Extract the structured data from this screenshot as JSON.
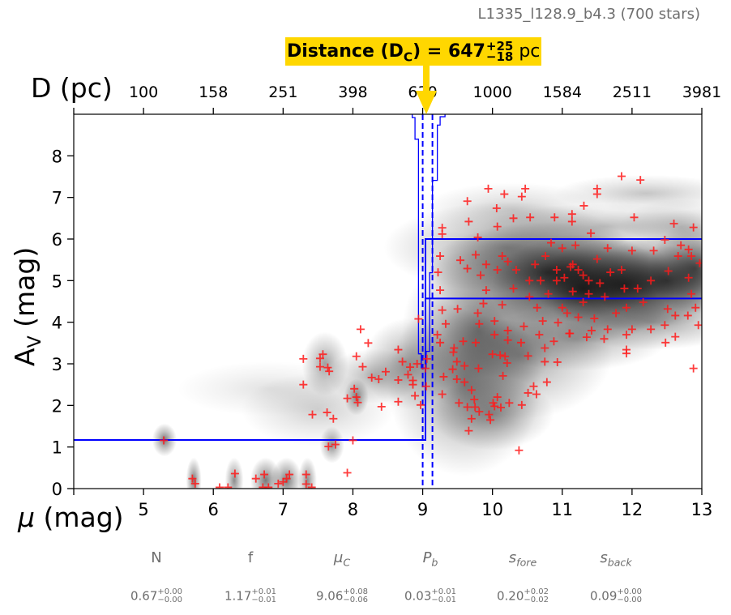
{
  "subtitle": "L1335_l128.9_b4.3 (700 stars)",
  "distance_label": {
    "prefix": "Distance (D",
    "sub": "C",
    "suffix": ") = 647",
    "plus": "+25",
    "minus": "−18",
    "unit": " pc",
    "value_pc": 647
  },
  "parameters": [
    {
      "name": "N",
      "sub": "",
      "italic": false,
      "value": "0.67",
      "plus": "+0.00",
      "minus": "−0.00"
    },
    {
      "name": "f",
      "sub": "",
      "italic": false,
      "value": "1.17",
      "plus": "+0.01",
      "minus": "−0.01"
    },
    {
      "name": "μ",
      "sub": "C",
      "italic": true,
      "value": "9.06",
      "plus": "+0.08",
      "minus": "−0.06"
    },
    {
      "name": "P",
      "sub": "b",
      "italic": true,
      "value": "0.03",
      "plus": "+0.01",
      "minus": "−0.01"
    },
    {
      "name": "s",
      "sub": "fore",
      "italic": true,
      "value": "0.20",
      "plus": "+0.02",
      "minus": "−0.02"
    },
    {
      "name": "s",
      "sub": "back",
      "italic": true,
      "value": "0.09",
      "plus": "+0.00",
      "minus": "−0.00"
    }
  ],
  "chart_data": {
    "type": "scatter",
    "xlabel": "μ (mag)",
    "ylabel_main": "A",
    "ylabel_sub": "V",
    "ylabel_unit": " (mag)",
    "top_xlabel": "D (pc)",
    "xlim": [
      4,
      13
    ],
    "ylim": [
      0,
      9
    ],
    "xticks": [
      5,
      6,
      7,
      8,
      9,
      10,
      11,
      12,
      13
    ],
    "yticks": [
      0,
      1,
      2,
      3,
      4,
      5,
      6,
      7,
      8
    ],
    "top_ticks": [
      {
        "mu": 5,
        "label": "100"
      },
      {
        "mu": 6,
        "label": "158"
      },
      {
        "mu": 7,
        "label": "251"
      },
      {
        "mu": 8,
        "label": "398"
      },
      {
        "mu": 9,
        "label": "630"
      },
      {
        "mu": 10,
        "label": "1000"
      },
      {
        "mu": 11,
        "label": "1584"
      },
      {
        "mu": 12,
        "label": "2511"
      },
      {
        "mu": 13,
        "label": "3981"
      }
    ],
    "grid": false,
    "colors": {
      "stars": "#ff1a1a",
      "model": "#0000ff",
      "highlight": "#FFD700",
      "density": "#000000"
    },
    "mu_c": 9.06,
    "mu_c_interval": [
      9.0,
      9.14
    ],
    "model_foreground": [
      [
        4,
        1.17
      ],
      [
        9.04,
        1.17
      ],
      [
        9.04,
        6.0
      ],
      [
        13,
        6.0
      ]
    ],
    "model_background_lower": [
      [
        9.04,
        4.57
      ],
      [
        13,
        4.57
      ]
    ],
    "mu_c_posterior_outline": [
      [
        8.85,
        9.01
      ],
      [
        8.85,
        8.92
      ],
      [
        8.89,
        8.92
      ],
      [
        8.89,
        8.4
      ],
      [
        8.94,
        8.4
      ],
      [
        8.94,
        3.24
      ],
      [
        8.98,
        3.24
      ],
      [
        8.98,
        2.9
      ],
      [
        9.05,
        2.9
      ],
      [
        9.05,
        3.3
      ],
      [
        9.1,
        3.3
      ],
      [
        9.1,
        5.19
      ],
      [
        9.14,
        5.19
      ],
      [
        9.14,
        7.41
      ],
      [
        9.21,
        7.41
      ],
      [
        9.21,
        8.74
      ],
      [
        9.25,
        8.74
      ],
      [
        9.25,
        8.94
      ],
      [
        9.32,
        8.94
      ],
      [
        9.32,
        9.01
      ]
    ],
    "density_components": [
      [
        5.3,
        1.17,
        0.08,
        0.18,
        0.7
      ],
      [
        5.72,
        0.2,
        0.05,
        0.25,
        0.7
      ],
      [
        6.3,
        0.2,
        0.06,
        0.25,
        0.6
      ],
      [
        6.75,
        0.2,
        0.1,
        0.25,
        0.7
      ],
      [
        7.05,
        0.2,
        0.1,
        0.25,
        0.7
      ],
      [
        7.35,
        0.2,
        0.06,
        0.25,
        0.6
      ],
      [
        7.7,
        1.05,
        0.08,
        0.2,
        0.6
      ],
      [
        8.05,
        2.2,
        0.08,
        0.2,
        0.6
      ],
      [
        7.6,
        3.0,
        0.15,
        0.35,
        0.5
      ],
      [
        8.3,
        2.7,
        0.3,
        0.3,
        0.4
      ],
      [
        7.5,
        1.9,
        0.5,
        0.4,
        0.25
      ],
      [
        6.8,
        2.4,
        0.6,
        0.3,
        0.15
      ],
      [
        8.8,
        3.0,
        0.3,
        0.5,
        0.5
      ],
      [
        9.6,
        2.5,
        0.5,
        1.0,
        0.55
      ],
      [
        10.0,
        1.8,
        0.4,
        0.4,
        0.5
      ],
      [
        9.8,
        3.8,
        0.5,
        0.9,
        0.6
      ],
      [
        10.4,
        3.2,
        0.6,
        0.7,
        0.5
      ],
      [
        10.8,
        5.2,
        0.8,
        0.55,
        0.95
      ],
      [
        11.3,
        4.8,
        0.6,
        0.6,
        1.0
      ],
      [
        11.9,
        4.9,
        0.6,
        0.5,
        0.9
      ],
      [
        12.5,
        5.0,
        0.5,
        0.5,
        0.85
      ],
      [
        12.9,
        5.3,
        0.3,
        0.5,
        0.8
      ],
      [
        10.2,
        5.8,
        0.8,
        0.5,
        0.5
      ],
      [
        11.6,
        6.3,
        0.8,
        0.25,
        0.35
      ],
      [
        12.2,
        7.1,
        0.6,
        0.2,
        0.3
      ],
      [
        10.3,
        6.7,
        0.6,
        0.3,
        0.25
      ],
      [
        12.3,
        4.0,
        0.6,
        0.3,
        0.5
      ],
      [
        11.2,
        3.6,
        0.6,
        0.35,
        0.45
      ],
      [
        12.7,
        6.3,
        0.4,
        0.3,
        0.3
      ]
    ],
    "points": [
      [
        5.29,
        1.16
      ],
      [
        5.7,
        0.24
      ],
      [
        5.74,
        0.12
      ],
      [
        6.09,
        0.03
      ],
      [
        6.21,
        0.03
      ],
      [
        6.31,
        0.36
      ],
      [
        6.61,
        0.24
      ],
      [
        6.73,
        0.34
      ],
      [
        6.71,
        0.03
      ],
      [
        6.79,
        0.03
      ],
      [
        6.93,
        0.12
      ],
      [
        7.0,
        0.16
      ],
      [
        7.05,
        0.24
      ],
      [
        7.09,
        0.34
      ],
      [
        7.33,
        0.34
      ],
      [
        7.33,
        0.11
      ],
      [
        7.41,
        0.03
      ],
      [
        7.65,
        1.01
      ],
      [
        7.75,
        1.06
      ],
      [
        8.0,
        1.16
      ],
      [
        7.92,
        0.38
      ],
      [
        7.42,
        1.78
      ],
      [
        7.63,
        1.83
      ],
      [
        7.72,
        1.68
      ],
      [
        7.29,
        3.12
      ],
      [
        7.29,
        2.5
      ],
      [
        7.57,
        3.23
      ],
      [
        7.53,
        3.13
      ],
      [
        7.53,
        2.93
      ],
      [
        7.64,
        2.91
      ],
      [
        7.66,
        2.82
      ],
      [
        8.11,
        3.83
      ],
      [
        8.22,
        3.5
      ],
      [
        8.05,
        3.18
      ],
      [
        8.14,
        2.93
      ],
      [
        8.02,
        2.4
      ],
      [
        7.92,
        2.17
      ],
      [
        8.05,
        2.2
      ],
      [
        8.07,
        2.07
      ],
      [
        8.27,
        2.67
      ],
      [
        8.37,
        2.63
      ],
      [
        8.47,
        2.81
      ],
      [
        8.41,
        1.97
      ],
      [
        8.65,
        3.34
      ],
      [
        8.71,
        3.05
      ],
      [
        8.65,
        2.61
      ],
      [
        8.65,
        2.09
      ],
      [
        8.82,
        2.92
      ],
      [
        8.79,
        2.74
      ],
      [
        8.86,
        2.6
      ],
      [
        8.86,
        2.5
      ],
      [
        8.89,
        2.23
      ],
      [
        8.92,
        3.0
      ],
      [
        8.94,
        4.08
      ],
      [
        8.97,
        2.01
      ],
      [
        11.85,
        7.51
      ],
      [
        12.12,
        7.42
      ],
      [
        11.5,
        7.21
      ],
      [
        11.5,
        7.08
      ],
      [
        9.94,
        7.21
      ],
      [
        10.47,
        7.21
      ],
      [
        10.17,
        7.08
      ],
      [
        10.42,
        7.02
      ],
      [
        9.64,
        6.91
      ],
      [
        10.06,
        6.74
      ],
      [
        11.31,
        6.8
      ],
      [
        12.03,
        6.52
      ],
      [
        12.6,
        6.37
      ],
      [
        12.88,
        6.28
      ],
      [
        9.66,
        6.42
      ],
      [
        9.28,
        6.27
      ],
      [
        9.28,
        6.12
      ],
      [
        10.3,
        6.5
      ],
      [
        10.54,
        6.52
      ],
      [
        10.89,
        6.52
      ],
      [
        11.14,
        6.6
      ],
      [
        11.14,
        6.42
      ],
      [
        11.41,
        6.14
      ],
      [
        10.07,
        6.3
      ],
      [
        9.79,
        6.04
      ],
      [
        10.14,
        5.59
      ],
      [
        10.61,
        5.39
      ],
      [
        11.0,
        5.78
      ],
      [
        11.15,
        5.39
      ],
      [
        11.3,
        5.13
      ],
      [
        11.5,
        5.52
      ],
      [
        11.65,
        5.78
      ],
      [
        11.85,
        5.26
      ],
      [
        12.0,
        5.72
      ],
      [
        12.31,
        5.72
      ],
      [
        12.47,
        5.98
      ],
      [
        12.7,
        5.85
      ],
      [
        12.85,
        5.59
      ],
      [
        12.97,
        5.42
      ],
      [
        12.81,
        5.07
      ],
      [
        12.52,
        5.23
      ],
      [
        12.27,
        5.0
      ],
      [
        12.08,
        4.81
      ],
      [
        11.69,
        5.2
      ],
      [
        11.54,
        4.94
      ],
      [
        11.38,
        4.68
      ],
      [
        11.15,
        4.74
      ],
      [
        10.92,
        5.0
      ],
      [
        10.8,
        4.68
      ],
      [
        10.69,
        5.0
      ],
      [
        10.53,
        5.0
      ],
      [
        10.34,
        5.26
      ],
      [
        10.22,
        5.46
      ],
      [
        10.07,
        5.26
      ],
      [
        9.91,
        5.39
      ],
      [
        9.83,
        5.13
      ],
      [
        9.64,
        5.29
      ],
      [
        9.54,
        5.49
      ],
      [
        9.76,
        5.62
      ],
      [
        9.25,
        5.59
      ],
      [
        9.22,
        5.2
      ],
      [
        9.25,
        4.77
      ],
      [
        9.91,
        4.77
      ],
      [
        10.3,
        4.81
      ],
      [
        10.53,
        4.61
      ],
      [
        10.14,
        4.42
      ],
      [
        9.87,
        4.45
      ],
      [
        9.5,
        4.32
      ],
      [
        9.28,
        4.29
      ],
      [
        9.79,
        4.22
      ],
      [
        10.64,
        4.35
      ],
      [
        11.0,
        4.35
      ],
      [
        11.23,
        4.12
      ],
      [
        11.46,
        4.09
      ],
      [
        11.77,
        4.22
      ],
      [
        11.92,
        4.35
      ],
      [
        12.16,
        4.48
      ],
      [
        12.51,
        4.32
      ],
      [
        12.62,
        4.16
      ],
      [
        12.8,
        4.16
      ],
      [
        12.91,
        4.35
      ],
      [
        12.95,
        3.93
      ],
      [
        12.47,
        3.93
      ],
      [
        12.27,
        3.83
      ],
      [
        12.0,
        3.83
      ],
      [
        11.92,
        3.7
      ],
      [
        11.65,
        3.83
      ],
      [
        11.42,
        3.8
      ],
      [
        11.11,
        3.73
      ],
      [
        10.94,
        3.99
      ],
      [
        10.72,
        4.03
      ],
      [
        10.45,
        3.9
      ],
      [
        10.22,
        3.8
      ],
      [
        10.03,
        4.03
      ],
      [
        9.81,
        3.96
      ],
      [
        9.33,
        3.96
      ],
      [
        9.21,
        3.7
      ],
      [
        9.25,
        3.51
      ],
      [
        9.58,
        3.54
      ],
      [
        9.76,
        3.51
      ],
      [
        10.03,
        3.7
      ],
      [
        10.22,
        3.57
      ],
      [
        10.41,
        3.51
      ],
      [
        10.67,
        3.7
      ],
      [
        10.88,
        3.54
      ],
      [
        11.1,
        3.73
      ],
      [
        11.35,
        3.64
      ],
      [
        11.6,
        3.6
      ],
      [
        11.92,
        3.34
      ],
      [
        11.92,
        3.25
      ],
      [
        12.48,
        3.51
      ],
      [
        12.62,
        3.65
      ],
      [
        12.88,
        2.89
      ],
      [
        9.45,
        3.38
      ],
      [
        9.44,
        3.28
      ],
      [
        9.49,
        3.05
      ],
      [
        9.6,
        2.95
      ],
      [
        10.0,
        3.23
      ],
      [
        10.11,
        3.21
      ],
      [
        10.18,
        3.18
      ],
      [
        10.21,
        3.02
      ],
      [
        9.8,
        2.89
      ],
      [
        9.43,
        2.87
      ],
      [
        9.3,
        2.69
      ],
      [
        9.49,
        2.63
      ],
      [
        9.6,
        2.56
      ],
      [
        9.7,
        2.37
      ],
      [
        10.15,
        2.71
      ],
      [
        10.51,
        3.19
      ],
      [
        10.75,
        3.38
      ],
      [
        10.75,
        3.05
      ],
      [
        10.93,
        3.04
      ],
      [
        10.59,
        2.46
      ],
      [
        10.78,
        2.56
      ],
      [
        10.51,
        2.3
      ],
      [
        10.63,
        2.27
      ],
      [
        9.28,
        2.27
      ],
      [
        9.52,
        2.06
      ],
      [
        9.64,
        1.96
      ],
      [
        9.74,
        2.14
      ],
      [
        9.75,
        1.96
      ],
      [
        9.81,
        1.85
      ],
      [
        9.7,
        1.68
      ],
      [
        9.95,
        1.78
      ],
      [
        9.97,
        1.65
      ],
      [
        10.01,
        2.06
      ],
      [
        10.03,
        1.98
      ],
      [
        10.12,
        1.95
      ],
      [
        10.07,
        2.2
      ],
      [
        10.24,
        2.06
      ],
      [
        10.42,
        2.01
      ],
      [
        9.66,
        1.39
      ],
      [
        10.38,
        0.92
      ],
      [
        9.06,
        3.12
      ],
      [
        9.04,
        2.89
      ],
      [
        9.05,
        2.46
      ],
      [
        11.12,
        5.33
      ],
      [
        11.23,
        5.26
      ],
      [
        10.92,
        5.26
      ],
      [
        11.03,
        5.07
      ],
      [
        11.38,
        5.0
      ],
      [
        10.76,
        5.59
      ],
      [
        11.19,
        5.85
      ],
      [
        10.84,
        5.91
      ],
      [
        11.3,
        4.48
      ],
      [
        11.07,
        4.22
      ],
      [
        11.61,
        4.61
      ],
      [
        11.89,
        4.81
      ],
      [
        12.85,
        4.68
      ],
      [
        12.66,
        5.59
      ],
      [
        12.81,
        5.75
      ]
    ]
  }
}
